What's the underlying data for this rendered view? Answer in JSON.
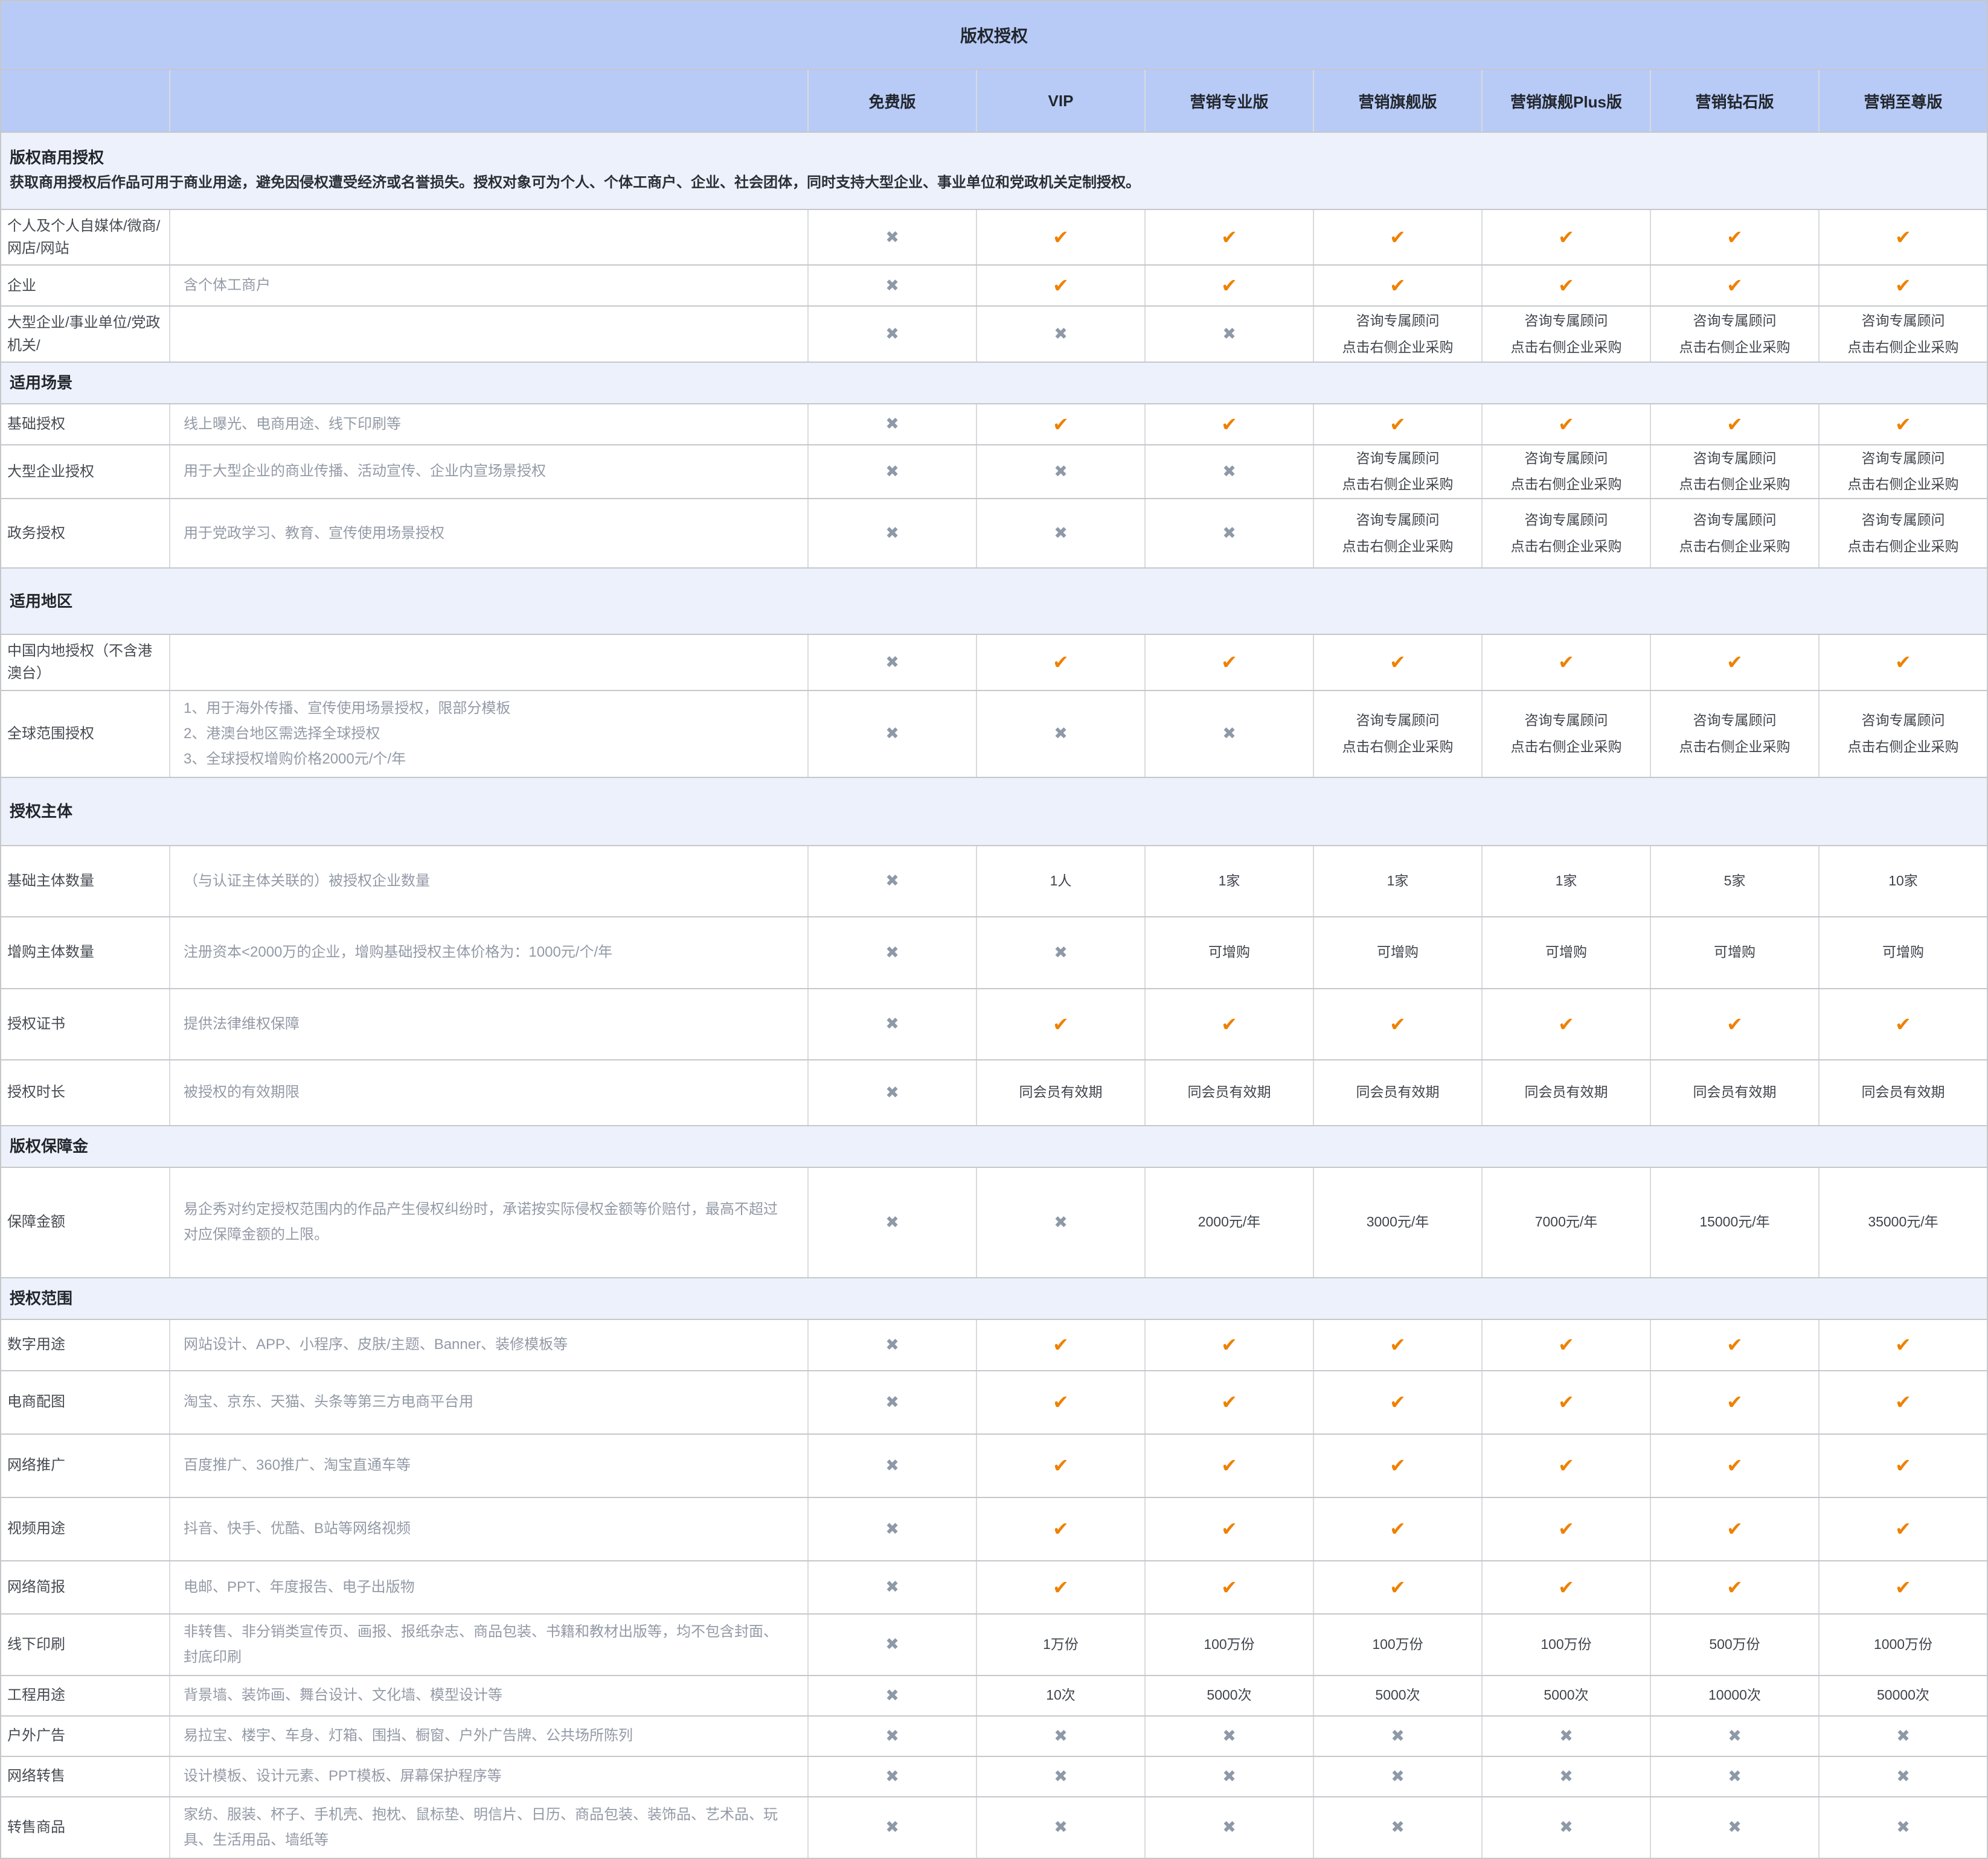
{
  "title": "版权授权",
  "columns": [
    "免费版",
    "VIP",
    "营销专业版",
    "营销旗舰版",
    "营销旗舰Plus版",
    "营销钻石版",
    "营销至尊版"
  ],
  "consult_lines": [
    "咨询专属顾问",
    "点击右侧企业采购"
  ],
  "icons": {
    "check": "✔",
    "cross": "✖"
  },
  "colors": {
    "check": "#EE8100",
    "cross": "#8E99A8",
    "header_bg": "#B8CBF7",
    "section_bg": "#EDF1FB"
  },
  "sections": [
    {
      "heading": "版权商用授权",
      "description": "获取商用授权后作品可用于商业用途，避免因侵权遭受经济或名誉损失。授权对象可为个人、个体工商户、企业、社会团体，同时支持大型企业、事业单位和党政机关定制授权。",
      "h": 128,
      "rows": [
        {
          "label": "个人及个人自媒体/微商/网店/网站",
          "desc": "",
          "h": 66,
          "values": [
            "x",
            "v",
            "v",
            "v",
            "v",
            "v",
            "v"
          ]
        },
        {
          "label": "企业",
          "desc": "含个体工商户",
          "h": 68,
          "values": [
            "x",
            "v",
            "v",
            "v",
            "v",
            "v",
            "v"
          ]
        },
        {
          "label": "大型企业/事业单位/党政机关/",
          "desc": "",
          "h": 78,
          "values": [
            "x",
            "x",
            "x",
            "c",
            "c",
            "c",
            "c"
          ]
        }
      ]
    },
    {
      "heading": "适用场景",
      "description": "",
      "h": 60,
      "rows": [
        {
          "label": "基础授权",
          "desc": "线上曝光、电商用途、线下印刷等",
          "h": 68,
          "values": [
            "x",
            "v",
            "v",
            "v",
            "v",
            "v",
            "v"
          ]
        },
        {
          "label": "大型企业授权",
          "desc": "用于大型企业的商业传播、活动宣传、企业内宣场景授权",
          "h": 77,
          "values": [
            "x",
            "x",
            "x",
            "c",
            "c",
            "c",
            "c"
          ]
        },
        {
          "label": "政务授权",
          "desc": "用于党政学习、教育、宣传使用场景授权",
          "h": 115,
          "values": [
            "x",
            "x",
            "x",
            "c",
            "c",
            "c",
            "c"
          ]
        }
      ]
    },
    {
      "heading": "适用地区",
      "description": "",
      "h": 110,
      "rows": [
        {
          "label": "中国内地授权（不含港澳台）",
          "desc": "",
          "h": 70,
          "values": [
            "x",
            "v",
            "v",
            "v",
            "v",
            "v",
            "v"
          ]
        },
        {
          "label": "全球范围授权",
          "desc": "1、用于海外传播、宣传使用场景授权，限部分模板\n2、港澳台地区需选择全球授权\n3、全球授权增购价格2000元/个/年",
          "h": 120,
          "values": [
            "x",
            "x",
            "x",
            "c",
            "c",
            "c",
            "c"
          ]
        }
      ]
    },
    {
      "heading": "授权主体",
      "description": "",
      "h": 113,
      "rows": [
        {
          "label": "基础主体数量",
          "desc": "（与认证主体关联的）被授权企业数量",
          "h": 118,
          "values": [
            "x",
            "1人",
            "1家",
            "1家",
            "1家",
            "5家",
            "10家"
          ]
        },
        {
          "label": "增购主体数量",
          "desc": "注册资本<2000万的企业，增购基础授权主体价格为：1000元/个/年",
          "h": 119,
          "values": [
            "x",
            "x",
            "可增购",
            "可增购",
            "可增购",
            "可增购",
            "可增购"
          ]
        },
        {
          "label": "授权证书",
          "desc": "提供法律维权保障",
          "h": 118,
          "values": [
            "x",
            "v",
            "v",
            "v",
            "v",
            "v",
            "v"
          ]
        },
        {
          "label": "授权时长",
          "desc": "被授权的有效期限",
          "h": 109,
          "values": [
            "x",
            "同会员有效期",
            "同会员有效期",
            "同会员有效期",
            "同会员有效期",
            "同会员有效期",
            "同会员有效期"
          ]
        }
      ]
    },
    {
      "heading": "版权保障金",
      "description": "",
      "h": 66,
      "rows": [
        {
          "label": "保障金额",
          "desc": "易企秀对约定授权范围内的作品产生侵权纠纷时，承诺按实际侵权金额等价赔付，最高不超过对应保障金额的上限。",
          "h": 183,
          "values": [
            "x",
            "x",
            "2000元/年",
            "3000元/年",
            "7000元/年",
            "15000元/年",
            "35000元/年"
          ]
        }
      ]
    },
    {
      "heading": "授权范围",
      "description": "",
      "h": 64,
      "rows": [
        {
          "label": "数字用途",
          "desc": "网站设计、APP、小程序、皮肤/主题、Banner、装修模板等",
          "h": 85,
          "values": [
            "x",
            "v",
            "v",
            "v",
            "v",
            "v",
            "v"
          ]
        },
        {
          "label": "电商配图",
          "desc": "淘宝、京东、天猫、头条等第三方电商平台用",
          "h": 105,
          "values": [
            "x",
            "v",
            "v",
            "v",
            "v",
            "v",
            "v"
          ]
        },
        {
          "label": "网络推广",
          "desc": "百度推广、360推广、淘宝直通车等",
          "h": 105,
          "values": [
            "x",
            "v",
            "v",
            "v",
            "v",
            "v",
            "v"
          ]
        },
        {
          "label": "视频用途",
          "desc": "抖音、快手、优酷、B站等网络视频",
          "h": 105,
          "values": [
            "x",
            "v",
            "v",
            "v",
            "v",
            "v",
            "v"
          ]
        },
        {
          "label": "网络简报",
          "desc": "电邮、PPT、年度报告、电子出版物",
          "h": 88,
          "values": [
            "x",
            "v",
            "v",
            "v",
            "v",
            "v",
            "v"
          ]
        },
        {
          "label": "线下印刷",
          "desc": "非转售、非分销类宣传页、画报、报纸杂志、商品包装、书籍和教材出版等，均不包含封面、封底印刷",
          "h": 67,
          "values": [
            "x",
            "1万份",
            "100万份",
            "100万份",
            "100万份",
            "500万份",
            "1000万份"
          ]
        },
        {
          "label": "工程用途",
          "desc": "背景墙、装饰画、舞台设计、文化墙、模型设计等",
          "h": 67,
          "values": [
            "x",
            "10次",
            "5000次",
            "5000次",
            "5000次",
            "10000次",
            "50000次"
          ]
        },
        {
          "label": "户外广告",
          "desc": "易拉宝、楼宇、车身、灯箱、围挡、橱窗、户外广告牌、公共场所陈列",
          "h": 67,
          "values": [
            "x",
            "x",
            "x",
            "x",
            "x",
            "x",
            "x"
          ]
        },
        {
          "label": "网络转售",
          "desc": "设计模板、设计元素、PPT模板、屏幕保护程序等",
          "h": 67,
          "values": [
            "x",
            "x",
            "x",
            "x",
            "x",
            "x",
            "x"
          ]
        },
        {
          "label": "转售商品",
          "desc": "家纺、服装、杯子、手机壳、抱枕、鼠标垫、明信片、日历、商品包装、装饰品、艺术品、玩具、生活用品、墙纸等",
          "h": 79,
          "values": [
            "x",
            "x",
            "x",
            "x",
            "x",
            "x",
            "x"
          ]
        }
      ]
    }
  ]
}
